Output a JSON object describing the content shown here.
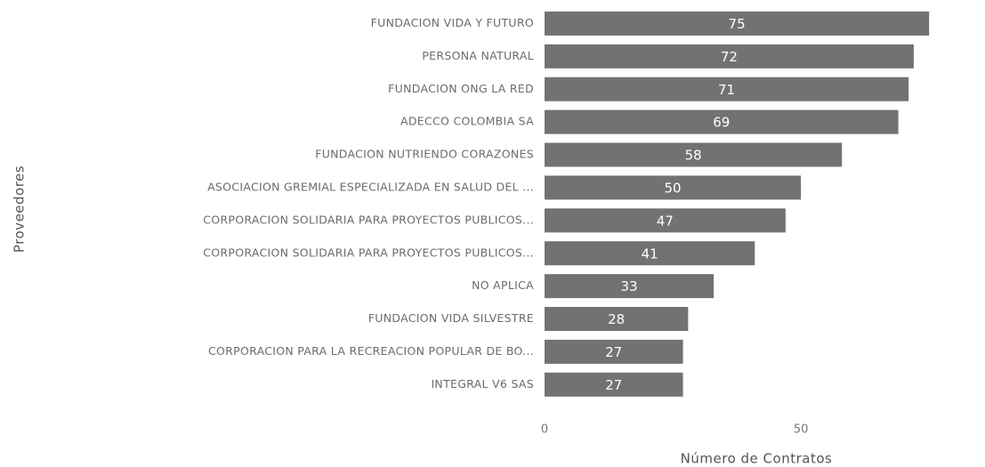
{
  "chart_data": {
    "type": "bar",
    "orientation": "horizontal",
    "categories": [
      "FUNDACION VIDA Y FUTURO",
      "PERSONA NATURAL",
      "FUNDACION ONG LA RED",
      "ADECCO COLOMBIA SA",
      "FUNDACION NUTRIENDO CORAZONES",
      "ASOCIACION GREMIAL ESPECIALIZADA EN SALUD DEL ...",
      "CORPORACION SOLIDARIA PARA PROYECTOS PUBLICOS...",
      "CORPORACION SOLIDARIA PARA PROYECTOS PUBLICOS...",
      "NO APLICA",
      "FUNDACION VIDA SILVESTRE",
      "CORPORACION PARA LA RECREACION POPULAR DE BO...",
      "INTEGRAL V6 SAS"
    ],
    "values": [
      75,
      72,
      71,
      69,
      58,
      50,
      47,
      41,
      33,
      28,
      27,
      27
    ],
    "color": "#727272",
    "xlim": [
      0,
      80
    ],
    "xticks": [
      0,
      50
    ],
    "xlabel": "Número de Contratos",
    "ylabel": "Proveedores"
  }
}
